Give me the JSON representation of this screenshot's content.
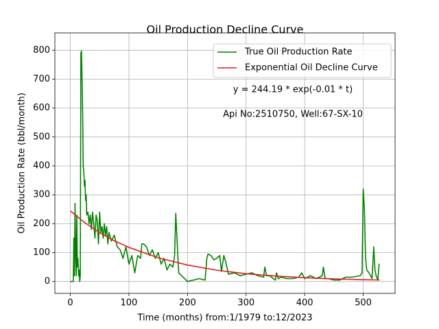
{
  "chart_data": {
    "type": "line",
    "title": "Oil Production Decline Curve",
    "xlabel": "Time (months) from:1/1979 to:12/2023",
    "ylabel": "Oil Production Rate (bbl/month)",
    "annotations": [
      "y = 244.19 * exp(-0.01 * t)",
      "Api No:2510750, Well:67-SX-10"
    ],
    "xlim": [
      -26.4,
      554.4
    ],
    "xticks": [
      0,
      100,
      200,
      300,
      400,
      500
    ],
    "ylim": [
      -41,
      860
    ],
    "yticks": [
      0,
      100,
      200,
      300,
      400,
      500,
      600,
      700,
      800
    ],
    "grid": true,
    "legend": "upper right",
    "series": [
      {
        "name": "True Oil Production Rate",
        "color": "#008000",
        "x": [
          0,
          5,
          6,
          7,
          8,
          9,
          10,
          11,
          12,
          13,
          14,
          15,
          16,
          17,
          18,
          19,
          20,
          21,
          22,
          23,
          24,
          25,
          26,
          27,
          28,
          30,
          32,
          34,
          36,
          38,
          40,
          42,
          44,
          46,
          48,
          50,
          52,
          54,
          56,
          58,
          60,
          62,
          64,
          66,
          70,
          75,
          80,
          85,
          90,
          95,
          100,
          105,
          110,
          115,
          120,
          122,
          125,
          130,
          135,
          140,
          145,
          150,
          155,
          160,
          165,
          170,
          175,
          178,
          180,
          182,
          185,
          190,
          195,
          200,
          210,
          220,
          230,
          233,
          235,
          240,
          245,
          250,
          255,
          258,
          262,
          265,
          270,
          280,
          290,
          300,
          310,
          320,
          330,
          332,
          335,
          340,
          350,
          352,
          355,
          360,
          370,
          380,
          390,
          395,
          400,
          410,
          420,
          430,
          432,
          435,
          440,
          450,
          460,
          470,
          480,
          495,
          498,
          500,
          502,
          504,
          506,
          510,
          515,
          518,
          520,
          522,
          525,
          527,
          528
        ],
        "values": [
          0,
          0,
          150,
          20,
          270,
          100,
          20,
          230,
          50,
          80,
          20,
          40,
          0,
          20,
          790,
          798,
          700,
          580,
          400,
          380,
          330,
          350,
          280,
          300,
          230,
          240,
          200,
          230,
          180,
          240,
          200,
          150,
          230,
          210,
          130,
          240,
          170,
          190,
          150,
          200,
          160,
          190,
          130,
          170,
          140,
          160,
          120,
          110,
          80,
          120,
          60,
          90,
          30,
          90,
          80,
          130,
          130,
          120,
          90,
          110,
          80,
          100,
          60,
          80,
          40,
          60,
          50,
          90,
          236,
          150,
          30,
          20,
          10,
          0,
          5,
          10,
          5,
          80,
          95,
          90,
          75,
          80,
          90,
          35,
          90,
          70,
          25,
          30,
          20,
          25,
          30,
          20,
          15,
          50,
          20,
          20,
          5,
          30,
          10,
          15,
          10,
          10,
          15,
          30,
          10,
          20,
          10,
          20,
          50,
          10,
          10,
          5,
          5,
          15,
          15,
          20,
          30,
          320,
          250,
          80,
          40,
          30,
          10,
          120,
          40,
          20,
          5,
          60,
          60
        ]
      },
      {
        "name": "Exponential Oil Decline Curve",
        "color": "#e41a1c",
        "x": [
          0,
          25,
          50,
          75,
          100,
          150,
          200,
          250,
          300,
          350,
          400,
          450,
          500,
          528
        ],
        "values": [
          244,
          203,
          169,
          141,
          118,
          82,
          57,
          39,
          27,
          19,
          13,
          9,
          6.3,
          5.2
        ]
      }
    ]
  }
}
